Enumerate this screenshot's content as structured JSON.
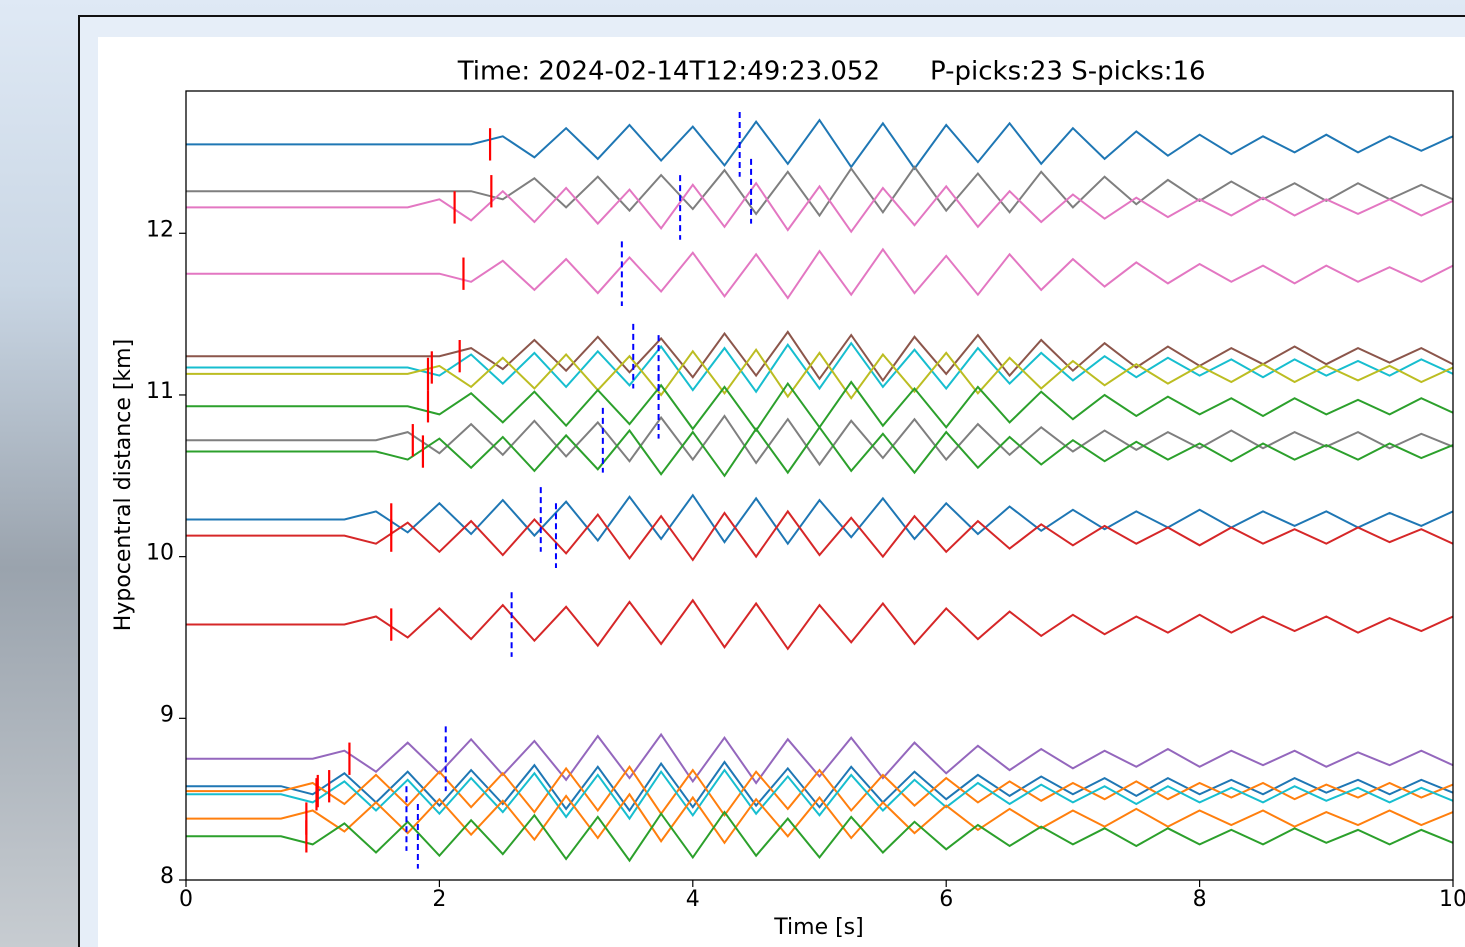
{
  "chart_data": {
    "type": "seismogram",
    "title": "Time: 2024-02-14T12:49:23.052",
    "subtitle": "P-picks:23 S-picks:16",
    "xlabel": "Time [s]",
    "ylabel": "Hypocentral distance [km]",
    "xlim": [
      0,
      10
    ],
    "ylim": [
      8,
      12.88
    ],
    "xticks": [
      0,
      2,
      4,
      6,
      8,
      10
    ],
    "yticks": [
      8,
      9,
      10,
      11,
      12
    ],
    "p_pick_color": "#ff0000",
    "s_pick_color": "#0000ff",
    "x": [
      0,
      0.25,
      0.5,
      0.75,
      1,
      1.25,
      1.5,
      1.75,
      2,
      2.25,
      2.5,
      2.75,
      3,
      3.25,
      3.5,
      3.75,
      4,
      4.25,
      4.5,
      4.75,
      5,
      5.25,
      5.5,
      5.75,
      6,
      6.25,
      6.5,
      6.75,
      7,
      7.25,
      7.5,
      7.75,
      8,
      8.25,
      8.5,
      8.75,
      9,
      9.25,
      9.5,
      9.75,
      10
    ],
    "series": [
      {
        "color": "#1f77b4",
        "distance": 12.55,
        "p_pick": 2.4,
        "s_pick": 4.37,
        "values": [
          0,
          0,
          0,
          0,
          0,
          0,
          0,
          0,
          0,
          0,
          0.05,
          -0.08,
          0.1,
          -0.09,
          0.12,
          -0.1,
          0.11,
          -0.13,
          0.14,
          -0.12,
          0.15,
          -0.14,
          0.13,
          -0.15,
          0.12,
          -0.11,
          0.13,
          -0.12,
          0.1,
          -0.09,
          0.08,
          -0.07,
          0.06,
          -0.06,
          0.05,
          -0.05,
          0.06,
          -0.05,
          0.05,
          -0.04,
          0.05
        ]
      },
      {
        "color": "#7f7f7f",
        "distance": 12.26,
        "p_pick": 2.41,
        "s_pick": 4.46,
        "values": [
          0,
          0,
          0,
          0,
          0,
          0,
          0,
          0,
          0,
          0,
          -0.05,
          0.08,
          -0.1,
          0.09,
          -0.12,
          0.1,
          -0.11,
          0.13,
          -0.14,
          0.12,
          -0.15,
          0.14,
          -0.13,
          0.15,
          -0.12,
          0.11,
          -0.13,
          0.12,
          -0.1,
          0.09,
          -0.08,
          0.07,
          -0.06,
          0.06,
          -0.05,
          0.05,
          -0.06,
          0.05,
          -0.05,
          0.04,
          -0.05
        ]
      },
      {
        "color": "#e377c2",
        "distance": 12.16,
        "p_pick": 2.12,
        "s_pick": 3.9,
        "values": [
          0,
          0,
          0,
          0,
          0,
          0,
          0,
          0,
          0.05,
          -0.08,
          0.1,
          -0.09,
          0.12,
          -0.1,
          0.11,
          -0.13,
          0.14,
          -0.12,
          0.15,
          -0.14,
          0.13,
          -0.15,
          0.12,
          -0.11,
          0.13,
          -0.12,
          0.1,
          -0.09,
          0.08,
          -0.07,
          0.06,
          -0.06,
          0.05,
          -0.05,
          0.06,
          -0.05,
          0.05,
          -0.04,
          0.05,
          -0.05,
          0.04
        ]
      },
      {
        "color": "#e377c2",
        "distance": 11.75,
        "p_pick": 2.19,
        "s_pick": 3.44,
        "values": [
          0,
          0,
          0,
          0,
          0,
          0,
          0,
          0,
          0,
          -0.05,
          0.08,
          -0.1,
          0.09,
          -0.12,
          0.1,
          -0.11,
          0.13,
          -0.14,
          0.12,
          -0.15,
          0.14,
          -0.13,
          0.15,
          -0.12,
          0.11,
          -0.13,
          0.12,
          -0.1,
          0.09,
          -0.08,
          0.07,
          -0.06,
          0.06,
          -0.05,
          0.05,
          -0.06,
          0.05,
          -0.05,
          0.04,
          -0.05,
          0.05
        ]
      },
      {
        "color": "#8c564b",
        "distance": 11.24,
        "p_pick": 2.16,
        "s_pick": 3.53,
        "values": [
          0,
          0,
          0,
          0,
          0,
          0,
          0,
          0,
          0,
          0.05,
          -0.08,
          0.1,
          -0.09,
          0.12,
          -0.1,
          0.11,
          -0.13,
          0.14,
          -0.12,
          0.15,
          -0.14,
          0.13,
          -0.15,
          0.12,
          -0.11,
          0.13,
          -0.12,
          0.1,
          -0.09,
          0.08,
          -0.07,
          0.06,
          -0.06,
          0.05,
          -0.05,
          0.06,
          -0.05,
          0.05,
          -0.04,
          0.05,
          -0.05
        ]
      },
      {
        "color": "#17becf",
        "distance": 11.17,
        "p_pick": 1.94,
        "s_pick": 3.73,
        "values": [
          0,
          0,
          0,
          0,
          0,
          0,
          0,
          0,
          -0.05,
          0.08,
          -0.1,
          0.09,
          -0.12,
          0.1,
          -0.11,
          0.13,
          -0.14,
          0.12,
          -0.15,
          0.14,
          -0.13,
          0.15,
          -0.12,
          0.11,
          -0.13,
          0.12,
          -0.1,
          0.09,
          -0.08,
          0.07,
          -0.06,
          0.06,
          -0.05,
          0.05,
          -0.06,
          0.05,
          -0.05,
          0.04,
          -0.05,
          0.05,
          -0.04
        ]
      },
      {
        "color": "#bcbd22",
        "distance": 11.13,
        "p_pick": 1.91,
        "s_pick": null,
        "values": [
          0,
          0,
          0,
          0,
          0,
          0,
          0,
          0,
          0.05,
          -0.08,
          0.1,
          -0.09,
          0.12,
          -0.1,
          0.11,
          -0.13,
          0.14,
          -0.12,
          0.15,
          -0.14,
          0.13,
          -0.15,
          0.12,
          -0.11,
          0.13,
          -0.12,
          0.1,
          -0.09,
          0.08,
          -0.07,
          0.06,
          -0.06,
          0.05,
          -0.05,
          0.06,
          -0.05,
          0.05,
          -0.04,
          0.05,
          -0.05,
          0.04
        ]
      },
      {
        "color": "#2ca02c",
        "distance": 10.93,
        "p_pick": 1.91,
        "s_pick": 3.73,
        "values": [
          0,
          0,
          0,
          0,
          0,
          0,
          0,
          0,
          -0.05,
          0.08,
          -0.1,
          0.09,
          -0.12,
          0.1,
          -0.11,
          0.13,
          -0.14,
          0.12,
          -0.15,
          0.14,
          -0.13,
          0.15,
          -0.12,
          0.11,
          -0.13,
          0.12,
          -0.1,
          0.09,
          -0.08,
          0.07,
          -0.06,
          0.06,
          -0.05,
          0.05,
          -0.06,
          0.05,
          -0.05,
          0.04,
          -0.05,
          0.05,
          -0.04
        ]
      },
      {
        "color": "#7f7f7f",
        "distance": 10.72,
        "p_pick": 1.79,
        "s_pick": 3.29,
        "values": [
          0,
          0,
          0,
          0,
          0,
          0,
          0,
          0.05,
          -0.08,
          0.1,
          -0.09,
          0.12,
          -0.1,
          0.11,
          -0.13,
          0.14,
          -0.12,
          0.15,
          -0.14,
          0.13,
          -0.15,
          0.12,
          -0.11,
          0.13,
          -0.12,
          0.1,
          -0.09,
          0.08,
          -0.07,
          0.06,
          -0.06,
          0.05,
          -0.05,
          0.06,
          -0.05,
          0.05,
          -0.04,
          0.05,
          -0.05,
          0.04,
          -0.04
        ]
      },
      {
        "color": "#2ca02c",
        "distance": 10.65,
        "p_pick": 1.87,
        "s_pick": null,
        "values": [
          0,
          0,
          0,
          0,
          0,
          0,
          0,
          -0.05,
          0.08,
          -0.1,
          0.09,
          -0.12,
          0.1,
          -0.11,
          0.13,
          -0.14,
          0.12,
          -0.15,
          0.14,
          -0.13,
          0.15,
          -0.12,
          0.11,
          -0.13,
          0.12,
          -0.1,
          0.09,
          -0.08,
          0.07,
          -0.06,
          0.06,
          -0.05,
          0.05,
          -0.06,
          0.05,
          -0.05,
          0.04,
          -0.05,
          0.05,
          -0.04,
          0.04
        ]
      },
      {
        "color": "#1f77b4",
        "distance": 10.23,
        "p_pick": 1.62,
        "s_pick": 2.8,
        "values": [
          0,
          0,
          0,
          0,
          0,
          0,
          0.05,
          -0.08,
          0.1,
          -0.09,
          0.12,
          -0.1,
          0.11,
          -0.13,
          0.14,
          -0.12,
          0.15,
          -0.14,
          0.13,
          -0.15,
          0.12,
          -0.11,
          0.13,
          -0.12,
          0.1,
          -0.09,
          0.08,
          -0.07,
          0.06,
          -0.06,
          0.05,
          -0.05,
          0.06,
          -0.05,
          0.05,
          -0.04,
          0.05,
          -0.05,
          0.04,
          -0.04,
          0.05
        ]
      },
      {
        "color": "#d62728",
        "distance": 10.13,
        "p_pick": 1.62,
        "s_pick": 2.92,
        "values": [
          0,
          0,
          0,
          0,
          0,
          0,
          -0.05,
          0.08,
          -0.1,
          0.09,
          -0.12,
          0.1,
          -0.11,
          0.13,
          -0.14,
          0.12,
          -0.15,
          0.14,
          -0.13,
          0.15,
          -0.12,
          0.11,
          -0.13,
          0.12,
          -0.1,
          0.09,
          -0.08,
          0.07,
          -0.06,
          0.06,
          -0.05,
          0.05,
          -0.06,
          0.05,
          -0.05,
          0.04,
          -0.05,
          0.05,
          -0.04,
          0.04,
          -0.05
        ]
      },
      {
        "color": "#d62728",
        "distance": 9.58,
        "p_pick": 1.62,
        "s_pick": 2.57,
        "values": [
          0,
          0,
          0,
          0,
          0,
          0,
          0.05,
          -0.08,
          0.1,
          -0.09,
          0.12,
          -0.1,
          0.11,
          -0.13,
          0.14,
          -0.12,
          0.15,
          -0.14,
          0.13,
          -0.15,
          0.12,
          -0.11,
          0.13,
          -0.12,
          0.1,
          -0.09,
          0.08,
          -0.07,
          0.06,
          -0.06,
          0.05,
          -0.05,
          0.06,
          -0.05,
          0.05,
          -0.04,
          0.05,
          -0.05,
          0.04,
          -0.04,
          0.05
        ]
      },
      {
        "color": "#9467bd",
        "distance": 8.75,
        "p_pick": 1.29,
        "s_pick": 2.05,
        "values": [
          0,
          0,
          0,
          0,
          0,
          0.05,
          -0.08,
          0.1,
          -0.09,
          0.12,
          -0.1,
          0.11,
          -0.13,
          0.14,
          -0.12,
          0.15,
          -0.14,
          0.13,
          -0.15,
          0.12,
          -0.11,
          0.13,
          -0.12,
          0.1,
          -0.09,
          0.08,
          -0.07,
          0.06,
          -0.06,
          0.05,
          -0.05,
          0.06,
          -0.05,
          0.05,
          -0.04,
          0.05,
          -0.05,
          0.04,
          -0.04,
          0.05,
          -0.04
        ]
      },
      {
        "color": "#1f77b4",
        "distance": 8.58,
        "p_pick": 1.13,
        "s_pick": null,
        "values": [
          0,
          0,
          0,
          0,
          -0.05,
          0.08,
          -0.1,
          0.09,
          -0.12,
          0.1,
          -0.11,
          0.13,
          -0.14,
          0.12,
          -0.15,
          0.14,
          -0.13,
          0.15,
          -0.12,
          0.11,
          -0.13,
          0.12,
          -0.1,
          0.09,
          -0.08,
          0.07,
          -0.06,
          0.06,
          -0.05,
          0.05,
          -0.06,
          0.05,
          -0.05,
          0.04,
          -0.05,
          0.05,
          -0.04,
          0.04,
          -0.05,
          0.04,
          -0.04
        ]
      },
      {
        "color": "#ff7f0e",
        "distance": 8.55,
        "p_pick": 1.04,
        "s_pick": null,
        "values": [
          0,
          0,
          0,
          0,
          0.05,
          -0.08,
          0.1,
          -0.09,
          0.12,
          -0.1,
          0.11,
          -0.13,
          0.14,
          -0.12,
          0.15,
          -0.14,
          0.13,
          -0.15,
          0.12,
          -0.11,
          0.13,
          -0.12,
          0.1,
          -0.09,
          0.08,
          -0.07,
          0.06,
          -0.06,
          0.05,
          -0.05,
          0.06,
          -0.05,
          0.05,
          -0.04,
          0.05,
          -0.05,
          0.04,
          -0.04,
          0.05,
          -0.04,
          0.04
        ]
      },
      {
        "color": "#17becf",
        "distance": 8.53,
        "p_pick": 1.03,
        "s_pick": null,
        "values": [
          0,
          0,
          0,
          0,
          -0.05,
          0.08,
          -0.1,
          0.09,
          -0.12,
          0.1,
          -0.11,
          0.13,
          -0.14,
          0.12,
          -0.15,
          0.14,
          -0.13,
          0.15,
          -0.12,
          0.11,
          -0.13,
          0.12,
          -0.1,
          0.09,
          -0.08,
          0.07,
          -0.06,
          0.06,
          -0.05,
          0.05,
          -0.06,
          0.05,
          -0.05,
          0.04,
          -0.05,
          0.05,
          -0.04,
          0.04,
          -0.05,
          0.04,
          -0.04
        ]
      },
      {
        "color": "#ff7f0e",
        "distance": 8.38,
        "p_pick": 0.95,
        "s_pick": 1.74,
        "values": [
          0,
          0,
          0,
          0,
          0.05,
          -0.08,
          0.1,
          -0.09,
          0.12,
          -0.1,
          0.11,
          -0.13,
          0.14,
          -0.12,
          0.15,
          -0.14,
          0.13,
          -0.15,
          0.12,
          -0.11,
          0.13,
          -0.12,
          0.1,
          -0.09,
          0.08,
          -0.07,
          0.06,
          -0.06,
          0.05,
          -0.05,
          0.06,
          -0.05,
          0.05,
          -0.04,
          0.05,
          -0.05,
          0.04,
          -0.04,
          0.05,
          -0.04,
          0.04
        ]
      },
      {
        "color": "#2ca02c",
        "distance": 8.27,
        "p_pick": 0.95,
        "s_pick": 1.83,
        "values": [
          0,
          0,
          0,
          0,
          -0.05,
          0.08,
          -0.1,
          0.09,
          -0.12,
          0.1,
          -0.11,
          0.13,
          -0.14,
          0.12,
          -0.15,
          0.14,
          -0.13,
          0.15,
          -0.12,
          0.11,
          -0.13,
          0.12,
          -0.1,
          0.09,
          -0.08,
          0.07,
          -0.06,
          0.06,
          -0.05,
          0.05,
          -0.06,
          0.05,
          -0.05,
          0.04,
          -0.05,
          0.05,
          -0.04,
          0.04,
          -0.05,
          0.04,
          -0.04
        ]
      }
    ]
  }
}
